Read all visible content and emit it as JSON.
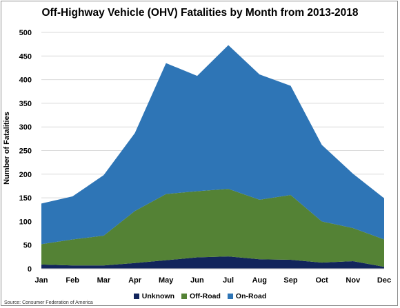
{
  "chart_data": {
    "type": "area",
    "stacked": true,
    "title": "Off-Highway Vehicle (OHV) Fatalities by Month from 2013-2018",
    "xlabel": "",
    "ylabel": "Number of Fatalities",
    "ylim": [
      0,
      500
    ],
    "yticks": [
      0,
      50,
      100,
      150,
      200,
      250,
      300,
      350,
      400,
      450,
      500
    ],
    "grid": true,
    "legend_position": "bottom",
    "categories": [
      "Jan",
      "Feb",
      "Mar",
      "Apr",
      "May",
      "Jun",
      "Jul",
      "Aug",
      "Sep",
      "Oct",
      "Nov",
      "Dec"
    ],
    "series": [
      {
        "name": "Unknown",
        "color": "#12255c",
        "values": [
          9,
          7,
          7,
          12,
          18,
          24,
          26,
          20,
          19,
          13,
          16,
          4
        ]
      },
      {
        "name": "Off-Road",
        "color": "#548235",
        "values": [
          43,
          55,
          63,
          110,
          140,
          140,
          143,
          126,
          137,
          87,
          70,
          58
        ]
      },
      {
        "name": "On-Road",
        "color": "#2e75b6",
        "values": [
          86,
          91,
          128,
          165,
          277,
          244,
          304,
          265,
          231,
          162,
          115,
          87
        ]
      }
    ],
    "source": "Source:  Consumer Federation  of America"
  }
}
